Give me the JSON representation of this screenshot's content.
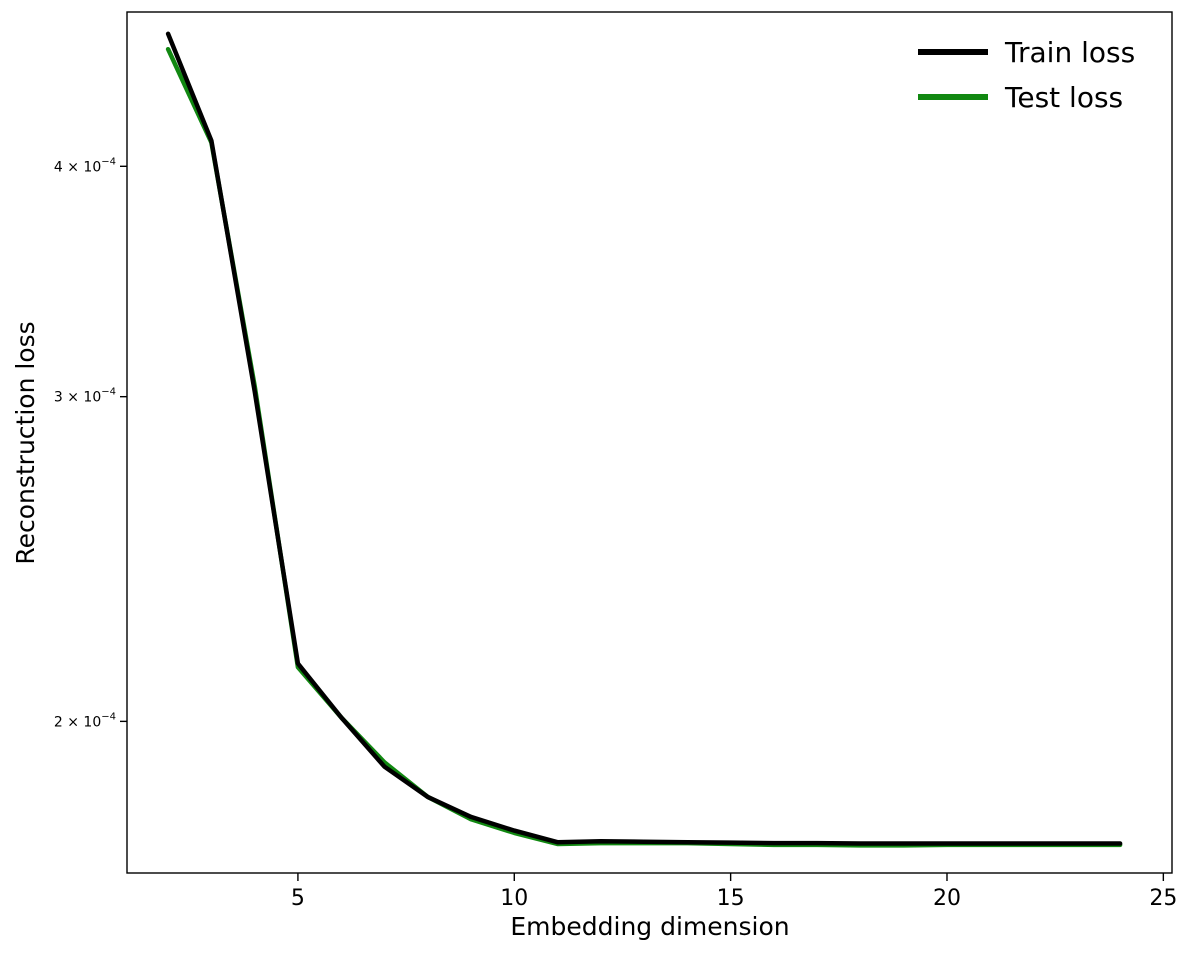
{
  "chart_data": {
    "type": "line",
    "title": "",
    "xlabel": "Embedding dimension",
    "ylabel": "Reconstruction loss",
    "xlim": [
      1.05,
      25.2
    ],
    "ylim": [
      0.0001655,
      0.000485
    ],
    "yscale": "log",
    "grid": false,
    "legend_position": "top-right",
    "x_ticks": [
      {
        "value": 5,
        "label": "5"
      },
      {
        "value": 10,
        "label": "10"
      },
      {
        "value": 15,
        "label": "15"
      },
      {
        "value": 20,
        "label": "20"
      },
      {
        "value": 25,
        "label": "25"
      }
    ],
    "y_ticks": [
      {
        "value": 0.0002,
        "mantissa": "2",
        "base": "10",
        "exponent": "−4"
      },
      {
        "value": 0.0003,
        "mantissa": "3",
        "base": "10",
        "exponent": "−4"
      },
      {
        "value": 0.0004,
        "mantissa": "4",
        "base": "10",
        "exponent": "−4"
      }
    ],
    "x": [
      2,
      3,
      4,
      5,
      6,
      7,
      8,
      9,
      10,
      11,
      12,
      13,
      14,
      15,
      16,
      17,
      18,
      19,
      20,
      21,
      22,
      23,
      24
    ],
    "series": [
      {
        "name": "Train loss",
        "color": "#000000",
        "values": [
          0.000472,
          0.000413,
          0.000302,
          0.000215,
          0.000201,
          0.000189,
          0.000182,
          0.0001775,
          0.0001745,
          0.000172,
          0.0001722,
          0.0001721,
          0.000172,
          0.0001719,
          0.0001718,
          0.0001718,
          0.0001717,
          0.0001717,
          0.0001717,
          0.0001717,
          0.0001717,
          0.0001717,
          0.0001717
        ]
      },
      {
        "name": "Test loss",
        "color": "#118811",
        "values": [
          0.000463,
          0.000412,
          0.000304,
          0.000214,
          0.000201,
          0.00019,
          0.000182,
          0.000177,
          0.000174,
          0.0001716,
          0.0001718,
          0.0001718,
          0.0001718,
          0.0001716,
          0.0001714,
          0.0001714,
          0.0001713,
          0.0001713,
          0.0001714,
          0.0001714,
          0.0001714,
          0.0001714,
          0.0001714
        ]
      }
    ]
  }
}
